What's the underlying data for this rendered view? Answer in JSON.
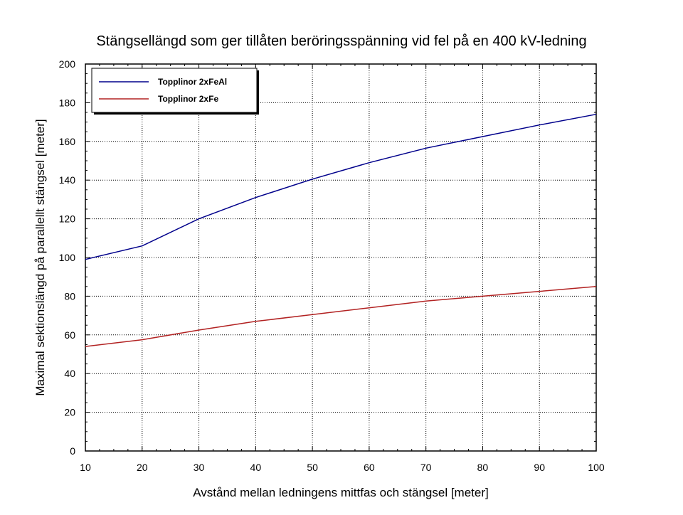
{
  "chart_data": {
    "type": "line",
    "title": "Stängsellängd som ger tillåten beröringsspänning vid fel på en 400 kV-ledning",
    "xlabel": "Avstånd mellan ledningens mittfas och stängsel [meter]",
    "ylabel": "Maximal sektionslängd på parallellt stängsel [meter]",
    "xlim": [
      10,
      100
    ],
    "ylim": [
      0,
      200
    ],
    "xticks": [
      10,
      20,
      30,
      40,
      50,
      60,
      70,
      80,
      90,
      100
    ],
    "yticks": [
      0,
      20,
      40,
      60,
      80,
      100,
      120,
      140,
      160,
      180,
      200
    ],
    "grid": true,
    "legend_position": "top-left",
    "series": [
      {
        "name": "Topplinor 2xFeAl",
        "color": "#00008B",
        "x": [
          10,
          20,
          30,
          40,
          50,
          60,
          70,
          80,
          90,
          100
        ],
        "y": [
          99,
          106,
          120,
          131,
          140.5,
          149,
          156.5,
          162.5,
          168.5,
          174
        ]
      },
      {
        "name": "Topplinor 2xFe",
        "color": "#B22222",
        "x": [
          10,
          20,
          30,
          40,
          50,
          60,
          70,
          80,
          90,
          100
        ],
        "y": [
          54,
          57.5,
          62.5,
          67,
          70.5,
          74,
          77.5,
          80,
          82.5,
          85
        ]
      }
    ]
  }
}
